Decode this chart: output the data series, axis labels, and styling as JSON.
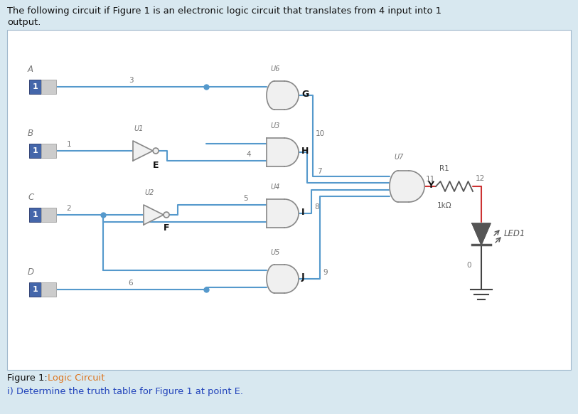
{
  "bg_color": "#d8e8f0",
  "wire_color": "#5599cc",
  "red_color": "#cc3333",
  "gate_fill": "#f0f0f0",
  "gate_stroke": "#888888",
  "text_dark": "#111111",
  "text_mid": "#666666",
  "text_blue": "#2244bb",
  "text_orange": "#dd7722",
  "input_blue": "#4466aa",
  "input_gray": "#cccccc",
  "title1": "The following circuit if Figure 1 is an electronic logic circuit that translates from 4 input into 1",
  "title2": "output.",
  "fig_label": "Figure 1: ",
  "fig_caption": "Logic Circuit",
  "question": "i) Determine the truth table for Figure 1 at point E."
}
